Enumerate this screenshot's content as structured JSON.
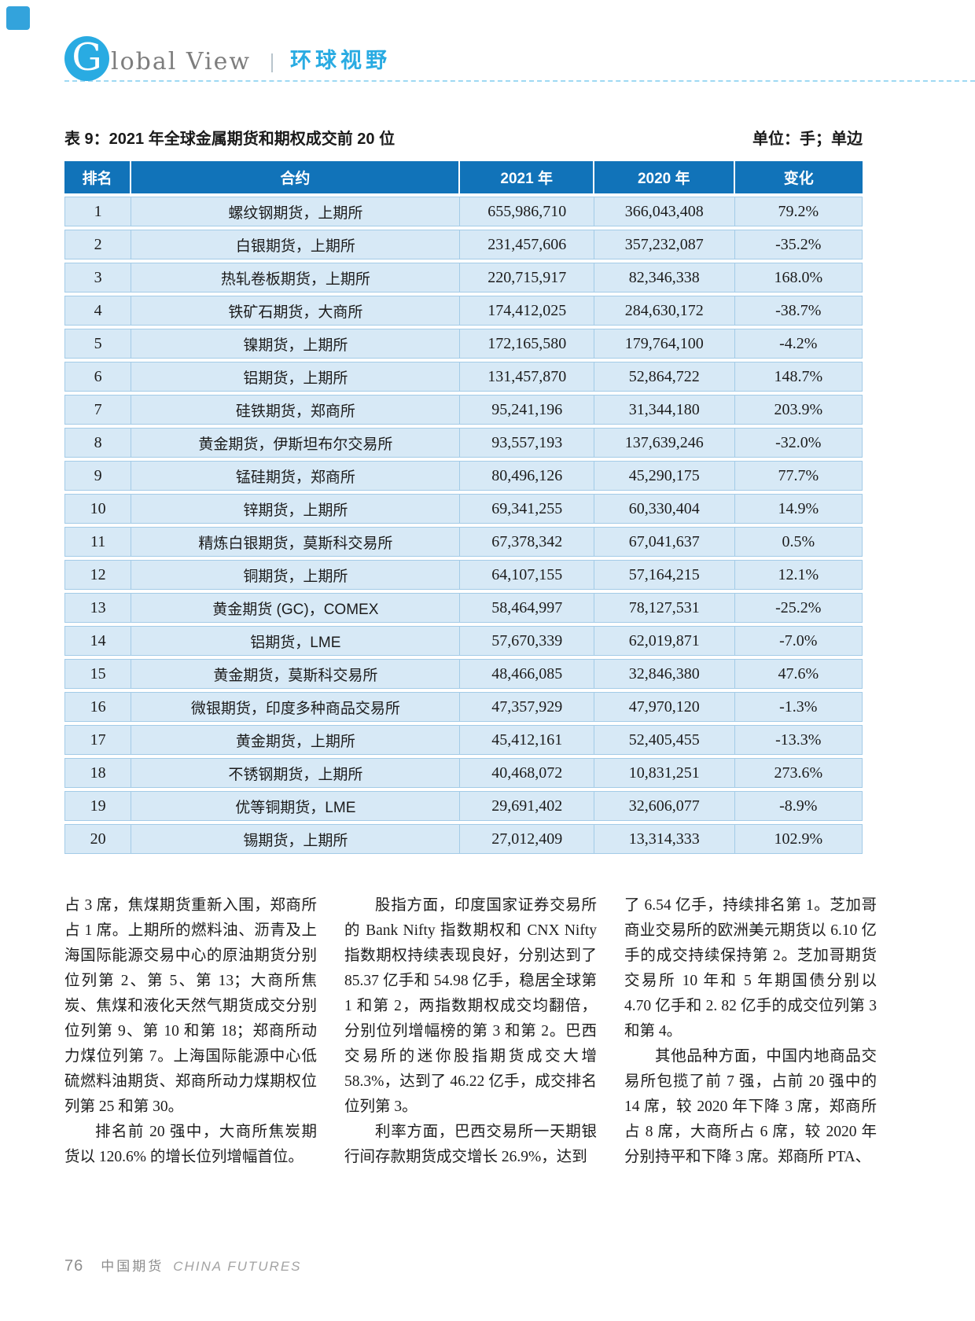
{
  "header": {
    "logo_letter": "G",
    "logo_rest": "lobal View",
    "section_cn": "环球视野"
  },
  "table": {
    "title": "表 9：2021 年全球金属期货和期权成交前 20 位",
    "unit": "单位：手；单边",
    "columns": [
      "排名",
      "合约",
      "2021 年",
      "2020 年",
      "变化"
    ],
    "rows": [
      {
        "rank": "1",
        "contract": "螺纹钢期货，上期所",
        "y2021": "655,986,710",
        "y2020": "366,043,408",
        "change": "79.2%"
      },
      {
        "rank": "2",
        "contract": "白银期货，上期所",
        "y2021": "231,457,606",
        "y2020": "357,232,087",
        "change": "-35.2%"
      },
      {
        "rank": "3",
        "contract": "热轧卷板期货，上期所",
        "y2021": "220,715,917",
        "y2020": "82,346,338",
        "change": "168.0%"
      },
      {
        "rank": "4",
        "contract": "铁矿石期货，大商所",
        "y2021": "174,412,025",
        "y2020": "284,630,172",
        "change": "-38.7%"
      },
      {
        "rank": "5",
        "contract": "镍期货，上期所",
        "y2021": "172,165,580",
        "y2020": "179,764,100",
        "change": "-4.2%"
      },
      {
        "rank": "6",
        "contract": "铝期货，上期所",
        "y2021": "131,457,870",
        "y2020": "52,864,722",
        "change": "148.7%"
      },
      {
        "rank": "7",
        "contract": "硅铁期货，郑商所",
        "y2021": "95,241,196",
        "y2020": "31,344,180",
        "change": "203.9%"
      },
      {
        "rank": "8",
        "contract": "黄金期货，伊斯坦布尔交易所",
        "y2021": "93,557,193",
        "y2020": "137,639,246",
        "change": "-32.0%"
      },
      {
        "rank": "9",
        "contract": "锰硅期货，郑商所",
        "y2021": "80,496,126",
        "y2020": "45,290,175",
        "change": "77.7%"
      },
      {
        "rank": "10",
        "contract": "锌期货，上期所",
        "y2021": "69,341,255",
        "y2020": "60,330,404",
        "change": "14.9%"
      },
      {
        "rank": "11",
        "contract": "精炼白银期货，莫斯科交易所",
        "y2021": "67,378,342",
        "y2020": "67,041,637",
        "change": "0.5%"
      },
      {
        "rank": "12",
        "contract": "铜期货，上期所",
        "y2021": "64,107,155",
        "y2020": "57,164,215",
        "change": "12.1%"
      },
      {
        "rank": "13",
        "contract": "黄金期货 (GC)，COMEX",
        "y2021": "58,464,997",
        "y2020": "78,127,531",
        "change": "-25.2%"
      },
      {
        "rank": "14",
        "contract": "铝期货，LME",
        "y2021": "57,670,339",
        "y2020": "62,019,871",
        "change": "-7.0%"
      },
      {
        "rank": "15",
        "contract": "黄金期货，莫斯科交易所",
        "y2021": "48,466,085",
        "y2020": "32,846,380",
        "change": "47.6%"
      },
      {
        "rank": "16",
        "contract": "微银期货，印度多种商品交易所",
        "y2021": "47,357,929",
        "y2020": "47,970,120",
        "change": "-1.3%"
      },
      {
        "rank": "17",
        "contract": "黄金期货，上期所",
        "y2021": "45,412,161",
        "y2020": "52,405,455",
        "change": "-13.3%"
      },
      {
        "rank": "18",
        "contract": "不锈钢期货，上期所",
        "y2021": "40,468,072",
        "y2020": "10,831,251",
        "change": "273.6%"
      },
      {
        "rank": "19",
        "contract": "优等铜期货，LME",
        "y2021": "29,691,402",
        "y2020": "32,606,077",
        "change": "-8.9%"
      },
      {
        "rank": "20",
        "contract": "锡期货，上期所",
        "y2021": "27,012,409",
        "y2020": "13,314,333",
        "change": "102.9%"
      }
    ]
  },
  "body_columns": [
    {
      "paragraphs": [
        {
          "indent": false,
          "text": "占 3 席，焦煤期货重新入围，郑商所占 1 席。上期所的燃料油、沥青及上海国际能源交易中心的原油期货分别位列第 2、第 5、第 13；大商所焦炭、焦煤和液化天然气期货成交分别位列第 9、第 10 和第 18；郑商所动力煤位列第 7。上海国际能源中心低硫燃料油期货、郑商所动力煤期权位列第 25 和第 30。"
        },
        {
          "indent": true,
          "text": "排名前 20 强中，大商所焦炭期货以 120.6% 的增长位列增幅首位。"
        }
      ]
    },
    {
      "paragraphs": [
        {
          "indent": true,
          "text": "股指方面，印度国家证券交易所的 Bank Nifty 指数期权和 CNX Nifty 指数期权持续表现良好，分别达到了 85.37 亿手和 54.98 亿手，稳居全球第 1 和第 2，两指数期权成交均翻倍，分别位列增幅榜的第 3 和第 2。巴西交易所的迷你股指期货成交大增 58.3%，达到了 46.22 亿手，成交排名位列第 3。"
        },
        {
          "indent": true,
          "text": "利率方面，巴西交易所一天期银行间存款期货成交增长 26.9%，达到"
        }
      ]
    },
    {
      "paragraphs": [
        {
          "indent": false,
          "text": "了 6.54 亿手，持续排名第 1。芝加哥商业交易所的欧洲美元期货以 6.10 亿手的成交持续保持第 2。芝加哥期货交易所 10 年和 5 年期国债分别以 4.70 亿手和 2. 82 亿手的成交位列第 3 和第 4。"
        },
        {
          "indent": true,
          "text": "其他品种方面，中国内地商品交易所包揽了前 7 强，占前 20 强中的 14 席，较 2020 年下降 3 席，郑商所占 8 席，大商所占 6 席，较 2020 年分别持平和下降 3 席。郑商所 PTA、"
        }
      ]
    }
  ],
  "footer": {
    "page_number": "76",
    "journal_cn": "中国期货",
    "journal_en": "CHINA FUTURES"
  },
  "colors": {
    "accent_cyan": "#29abe2",
    "table_header_blue": "#1173b9",
    "table_row_blue": "#d7e9f6",
    "table_border_blue": "#a3cbe7",
    "dashed_rule_blue": "#9fd9f3"
  }
}
